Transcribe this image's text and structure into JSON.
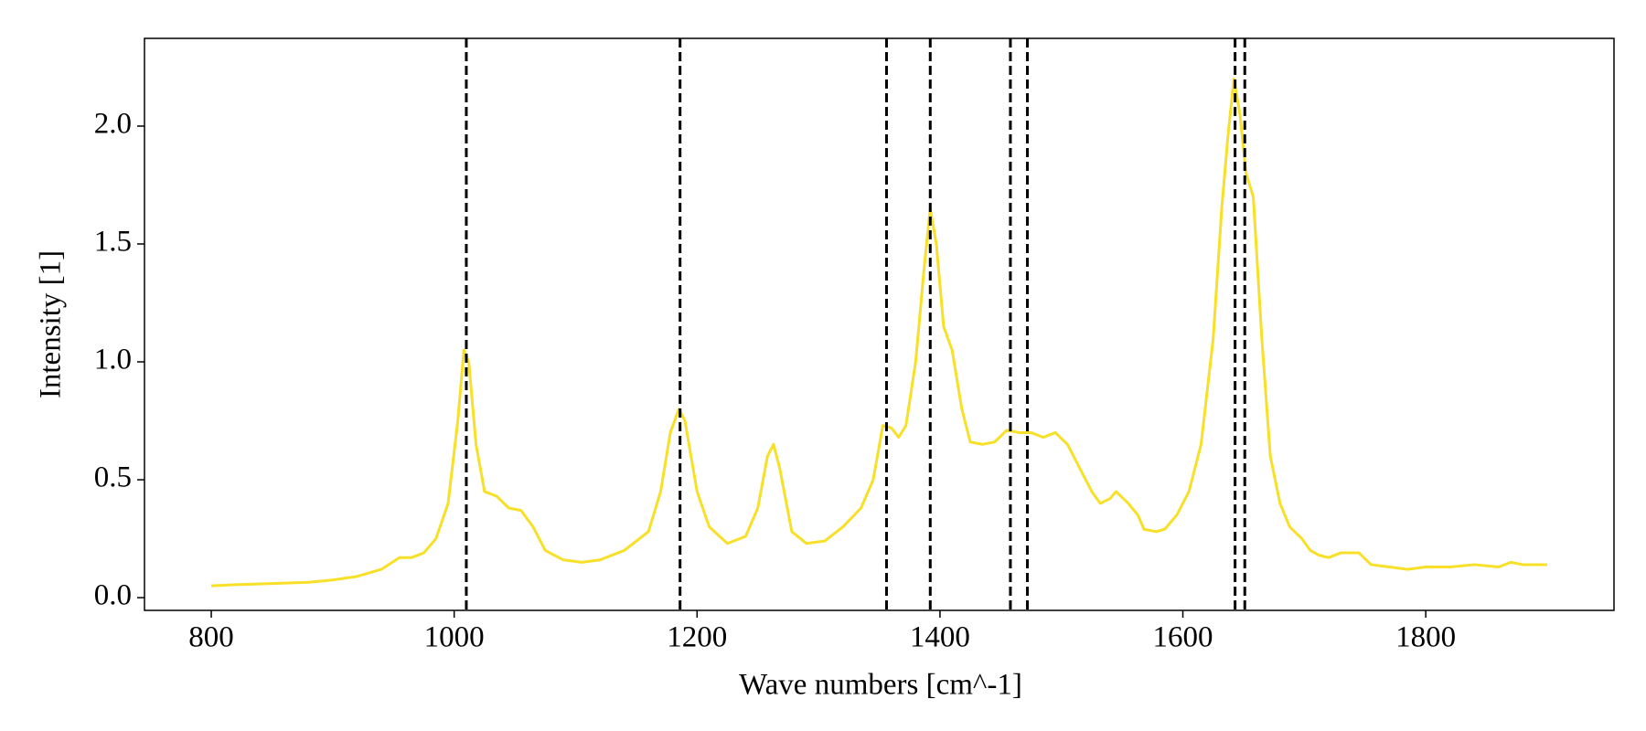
{
  "chart_data": {
    "type": "line",
    "xlabel": "Wave numbers [cm^-1]",
    "ylabel": "Intensity [1]",
    "x": [
      800,
      820,
      850,
      880,
      900,
      920,
      940,
      955,
      965,
      975,
      985,
      995,
      1003,
      1008,
      1012,
      1018,
      1025,
      1035,
      1045,
      1055,
      1065,
      1075,
      1090,
      1105,
      1120,
      1140,
      1160,
      1170,
      1178,
      1185,
      1190,
      1200,
      1210,
      1225,
      1240,
      1250,
      1258,
      1263,
      1268,
      1278,
      1290,
      1305,
      1320,
      1335,
      1345,
      1353,
      1360,
      1366,
      1372,
      1380,
      1387,
      1392,
      1397,
      1403,
      1410,
      1418,
      1425,
      1435,
      1445,
      1455,
      1465,
      1475,
      1485,
      1495,
      1505,
      1515,
      1525,
      1532,
      1540,
      1545,
      1555,
      1563,
      1568,
      1578,
      1585,
      1595,
      1605,
      1615,
      1625,
      1632,
      1637,
      1642,
      1647,
      1652,
      1658,
      1665,
      1672,
      1680,
      1688,
      1698,
      1705,
      1712,
      1720,
      1730,
      1745,
      1755,
      1770,
      1785,
      1800,
      1820,
      1840,
      1860,
      1870,
      1880,
      1890,
      1900
    ],
    "series": [
      {
        "color": "#f7e027",
        "values": [
          0.05,
          0.055,
          0.06,
          0.065,
          0.075,
          0.09,
          0.12,
          0.17,
          0.17,
          0.19,
          0.25,
          0.4,
          0.75,
          1.05,
          1.0,
          0.65,
          0.45,
          0.43,
          0.38,
          0.37,
          0.3,
          0.2,
          0.16,
          0.15,
          0.16,
          0.2,
          0.28,
          0.45,
          0.7,
          0.8,
          0.75,
          0.45,
          0.3,
          0.23,
          0.26,
          0.38,
          0.6,
          0.65,
          0.55,
          0.28,
          0.23,
          0.24,
          0.3,
          0.38,
          0.5,
          0.73,
          0.72,
          0.68,
          0.73,
          1.0,
          1.4,
          1.65,
          1.5,
          1.15,
          1.05,
          0.8,
          0.66,
          0.65,
          0.66,
          0.71,
          0.7,
          0.7,
          0.68,
          0.7,
          0.65,
          0.55,
          0.45,
          0.4,
          0.42,
          0.45,
          0.4,
          0.35,
          0.29,
          0.28,
          0.29,
          0.35,
          0.45,
          0.65,
          1.1,
          1.65,
          1.95,
          2.2,
          2.05,
          1.8,
          1.7,
          1.1,
          0.6,
          0.4,
          0.3,
          0.25,
          0.2,
          0.18,
          0.17,
          0.19,
          0.19,
          0.14,
          0.13,
          0.12,
          0.13,
          0.13,
          0.14,
          0.13,
          0.15,
          0.14,
          0.14,
          0.14
        ]
      }
    ],
    "vlines": [
      1010,
      1186,
      1356,
      1392,
      1458,
      1472,
      1643,
      1651
    ],
    "vline_color": "#000000",
    "xlim": [
      745,
      1955
    ],
    "ylim": [
      -0.054,
      2.372
    ],
    "xticks": [
      800,
      1000,
      1200,
      1400,
      1600,
      1800
    ],
    "yticks": [
      {
        "value": 0,
        "label": "0.0"
      },
      0.5,
      {
        "value": 1,
        "label": "1.0"
      },
      1.5,
      {
        "value": 2,
        "label": "2.0"
      }
    ]
  }
}
